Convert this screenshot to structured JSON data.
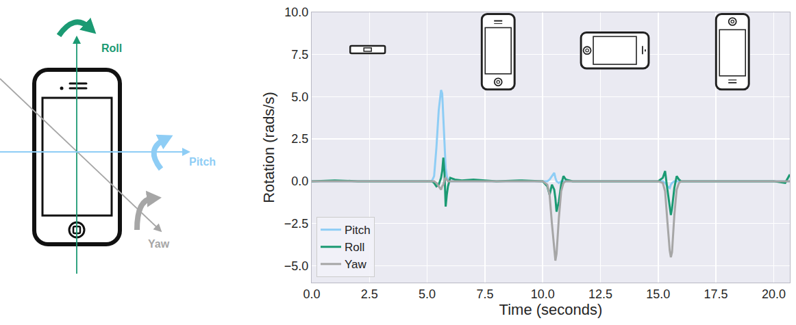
{
  "diagram": {
    "labels": [
      {
        "text": "Roll",
        "color": "#1b9a73"
      },
      {
        "text": "Pitch",
        "color": "#8ecdf5"
      },
      {
        "text": "Yaw",
        "color": "#a6a6a6"
      }
    ]
  },
  "chart_data": {
    "type": "line",
    "xlabel": "Time (seconds)",
    "ylabel": "Rotation (rads/s)",
    "x": [
      0,
      1,
      2,
      3,
      4,
      5,
      5.2,
      5.3,
      5.4,
      5.5,
      5.6,
      5.65,
      5.7,
      5.75,
      5.8,
      5.85,
      5.9,
      6.0,
      6.2,
      6.5,
      7,
      8,
      9,
      10,
      10.2,
      10.3,
      10.4,
      10.5,
      10.55,
      10.6,
      10.7,
      10.8,
      10.9,
      11.0,
      11.3,
      12,
      13,
      14,
      15,
      15.2,
      15.3,
      15.4,
      15.5,
      15.55,
      15.6,
      15.7,
      15.8,
      15.9,
      16.0,
      16.5,
      17,
      18,
      19,
      20,
      20.5,
      20.7
    ],
    "series": [
      {
        "name": "Pitch",
        "color": "#8ecdf5",
        "line_style": "solid",
        "values": [
          0,
          0,
          0,
          0,
          0,
          0,
          0,
          0.3,
          2.0,
          4.2,
          5.4,
          5.2,
          3.8,
          2.0,
          0.8,
          0.3,
          0.1,
          0,
          0,
          0,
          0,
          0,
          0,
          0,
          0,
          0.1,
          0.3,
          0.5,
          0.2,
          0,
          -0.1,
          0,
          0,
          0,
          0,
          0,
          0,
          0,
          0,
          0,
          -0.1,
          -0.3,
          -0.4,
          -0.2,
          -0.1,
          0,
          0,
          0,
          0,
          0,
          0,
          0,
          0,
          0,
          0,
          0
        ]
      },
      {
        "name": "Roll",
        "color": "#1b9a73",
        "line_style": "solid",
        "values": [
          0,
          0.05,
          0,
          0,
          0,
          0,
          0,
          -0.1,
          -0.3,
          -0.2,
          0.2,
          0.6,
          1.4,
          0.5,
          -1.5,
          -0.8,
          -0.3,
          0.2,
          0.1,
          0.05,
          0.1,
          0,
          0.05,
          0,
          -0.3,
          -0.8,
          -0.2,
          -0.5,
          -1.0,
          -1.8,
          -1.2,
          -0.2,
          0.3,
          0.1,
          0,
          0,
          0,
          0,
          0,
          0.2,
          0.6,
          -0.5,
          -1.5,
          -2.0,
          -1.6,
          -0.4,
          0.3,
          0.1,
          0,
          0,
          0,
          0,
          0,
          0,
          -0.1,
          0.4
        ]
      },
      {
        "name": "Yaw",
        "color": "#a6a6a6",
        "line_style": "solid",
        "values": [
          0,
          0,
          0,
          0,
          0,
          0,
          0,
          0,
          -0.1,
          -0.3,
          -0.5,
          -0.3,
          -0.2,
          0.1,
          0.2,
          0.1,
          0,
          0,
          0,
          0,
          0,
          0,
          0,
          0,
          -0.2,
          -0.8,
          -2.5,
          -4.2,
          -4.7,
          -4.3,
          -2.2,
          -0.6,
          -0.1,
          0,
          0,
          0,
          0,
          0,
          0,
          -0.1,
          -0.6,
          -2.4,
          -4.1,
          -4.5,
          -4.2,
          -2.0,
          -0.5,
          -0.1,
          0,
          0,
          0,
          0,
          0,
          0,
          0,
          0
        ]
      }
    ],
    "xlim": [
      0,
      20.7
    ],
    "xticks": [
      {
        "value": 0,
        "label": "0.0"
      },
      2.5,
      {
        "value": 5,
        "label": "5.0"
      },
      7.5,
      {
        "value": 10,
        "label": "10.0"
      },
      12.5,
      {
        "value": 15,
        "label": "15.0"
      },
      17.5,
      {
        "value": 20,
        "label": "20.0"
      }
    ],
    "ylim": [
      -6,
      10
    ],
    "yticks": [
      {
        "value": -5,
        "label": "−5.0"
      },
      {
        "value": -2.5,
        "label": "−2.5"
      },
      {
        "value": 0,
        "label": "0.0"
      },
      2.5,
      {
        "value": 5,
        "label": "5.0"
      },
      7.5,
      {
        "value": 10,
        "label": "10.0"
      }
    ],
    "grid": true,
    "legend": "lower left"
  }
}
